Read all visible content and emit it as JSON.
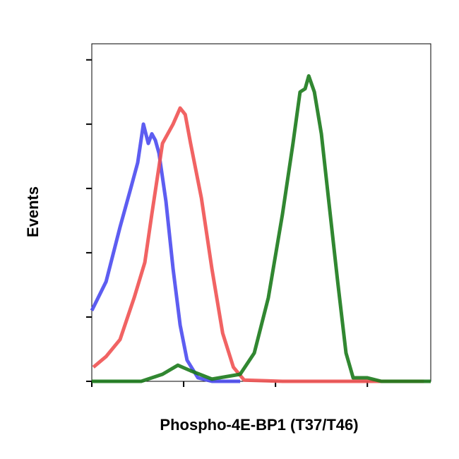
{
  "chart_data": {
    "type": "line",
    "xlabel": "Phospho-4E-BP1 (T37/T46)",
    "ylabel": "Events",
    "xscale": "log",
    "xlim": [
      1,
      4900
    ],
    "xticks": [
      1,
      10,
      100,
      1000
    ],
    "ylim": [
      0,
      105
    ],
    "yticks": [
      0,
      20,
      40,
      60,
      80,
      100
    ],
    "series": [
      {
        "color": "#4b4bef",
        "x": [
          1,
          1.43,
          2.03,
          2.65,
          3.16,
          3.65,
          4.12,
          4.5,
          4.92,
          5.38,
          6.42,
          7.67,
          9.15,
          10.9,
          14.3,
          20.3,
          41.2
        ],
        "values": [
          22,
          31,
          48,
          60,
          68,
          80,
          74,
          77,
          75,
          71,
          56,
          35,
          17.5,
          6.6,
          1.1,
          0,
          0
        ]
      },
      {
        "color": "#f05252",
        "x": [
          1.04,
          1.43,
          2.03,
          2.89,
          3.78,
          4.5,
          5.88,
          7.67,
          9.15,
          10.4,
          11.9,
          15.6,
          20.3,
          26.6,
          34.8,
          45.5,
          119,
          4130
        ],
        "values": [
          4.4,
          7.7,
          13,
          26,
          37,
          52,
          74,
          80,
          85,
          83,
          74,
          57,
          35,
          15,
          4.4,
          0.4,
          0,
          0
        ]
      },
      {
        "color": "#1b7a1b",
        "x": [
          1,
          3.45,
          5.88,
          8.66,
          11.9,
          20.3,
          41.2,
          58.7,
          83.5,
          119,
          155,
          185,
          210,
          230,
          265,
          316,
          377,
          475,
          586,
          700,
          1000,
          1420,
          4900
        ],
        "values": [
          0,
          0,
          2.2,
          5,
          3.3,
          0.7,
          2.2,
          8.8,
          26,
          52,
          74,
          90,
          91,
          95,
          90,
          77,
          57,
          31,
          8.8,
          1.1,
          1.1,
          0,
          0
        ]
      }
    ]
  }
}
